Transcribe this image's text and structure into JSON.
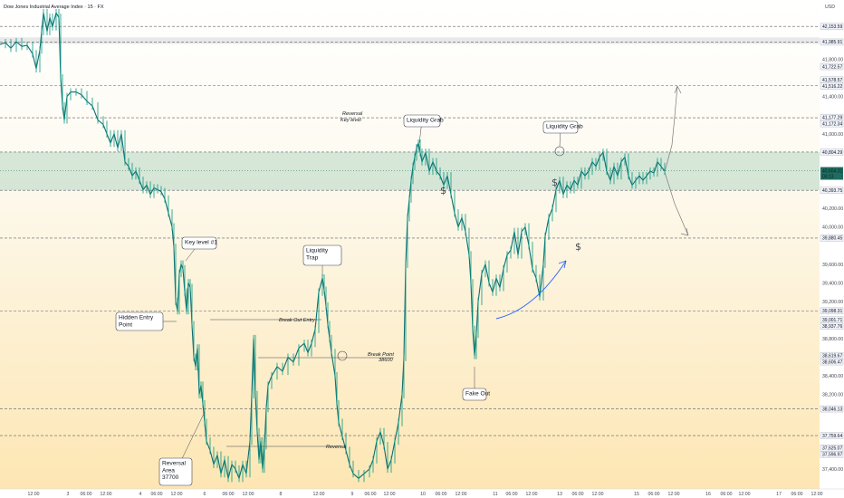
{
  "chart_data": {
    "type": "line",
    "title": "Dow Jones Industrial Average Index · 15 · FX",
    "currency": "USD",
    "ylim": [
      37000,
      42300
    ],
    "y_ticks": [
      "42,000.00",
      "41,800.00",
      "41,400.00",
      "41,000.00",
      "40,200.00",
      "40,000.00",
      "39,600.00",
      "39,400.00",
      "39,200.00",
      "38,800.00",
      "38,400.00",
      "38,200.00",
      "37,400.00"
    ],
    "level_labels": [
      "42,153.59",
      "41,985.91",
      "41,722.57",
      "41,578.57",
      "41,516.22",
      "41,177.29",
      "41,172.34",
      "40,804.29",
      "40,393.75",
      "39,880.45",
      "39,098.31",
      "39,001.71",
      "38,937.76",
      "38,619.67",
      "38,606.47",
      "38,046.13",
      "37,759.64",
      "37,625.07",
      "37,596.97"
    ],
    "current_price": "40,604.31",
    "current_countdown": "03:13",
    "x_tick_labels": [
      "12:00",
      "3",
      "06:00",
      "12:00",
      "4",
      "06:00",
      "12:00",
      "6",
      "06:00",
      "12:00",
      "8",
      "12:00",
      "9",
      "06:00",
      "12:00",
      "10",
      "06:00",
      "12:00",
      "11",
      "06:00",
      "12:00",
      "13",
      "06:00",
      "12:00",
      "15",
      "06:00",
      "12:00",
      "16",
      "06:00",
      "12:00",
      "17",
      "06:00",
      "12:00"
    ],
    "series": [
      {
        "values": [
          [
            0,
            41960
          ],
          [
            6,
            41980
          ],
          [
            12,
            41920
          ],
          [
            18,
            41990
          ],
          [
            24,
            41940
          ],
          [
            30,
            41950
          ],
          [
            36,
            41860
          ],
          [
            40,
            41700
          ],
          [
            44,
            41900
          ],
          [
            46,
            42100
          ],
          [
            48,
            42300
          ],
          [
            52,
            42100
          ],
          [
            55,
            42250
          ],
          [
            58,
            42150
          ],
          [
            62,
            42300
          ],
          [
            65,
            42250
          ],
          [
            67,
            41600
          ],
          [
            69,
            41300
          ],
          [
            71,
            41150
          ],
          [
            74,
            41400
          ],
          [
            78,
            41450
          ],
          [
            84,
            41450
          ],
          [
            90,
            41420
          ],
          [
            96,
            41350
          ],
          [
            102,
            41300
          ],
          [
            108,
            41150
          ],
          [
            114,
            41100
          ],
          [
            118,
            41000
          ],
          [
            122,
            40900
          ],
          [
            126,
            41000
          ],
          [
            130,
            40850
          ],
          [
            134,
            41000
          ],
          [
            138,
            40700
          ],
          [
            142,
            40650
          ],
          [
            146,
            40550
          ],
          [
            150,
            40600
          ],
          [
            154,
            40500
          ],
          [
            158,
            40400
          ],
          [
            162,
            40450
          ],
          [
            166,
            40350
          ],
          [
            170,
            40420
          ],
          [
            174,
            40400
          ],
          [
            178,
            40380
          ],
          [
            182,
            40300
          ],
          [
            186,
            40150
          ],
          [
            190,
            40000
          ],
          [
            192,
            39780
          ],
          [
            194,
            39200
          ],
          [
            196,
            39100
          ],
          [
            198,
            39500
          ],
          [
            200,
            39600
          ],
          [
            202,
            39550
          ],
          [
            204,
            39300
          ],
          [
            206,
            39100
          ],
          [
            208,
            39400
          ],
          [
            210,
            39350
          ],
          [
            212,
            38950
          ],
          [
            214,
            38600
          ],
          [
            216,
            38500
          ],
          [
            218,
            38700
          ],
          [
            220,
            38200
          ],
          [
            222,
            38300
          ],
          [
            224,
            38100
          ],
          [
            226,
            37900
          ],
          [
            228,
            37700
          ],
          [
            232,
            37600
          ],
          [
            236,
            37450
          ],
          [
            240,
            37550
          ],
          [
            244,
            37350
          ],
          [
            248,
            37500
          ],
          [
            252,
            37300
          ],
          [
            256,
            37450
          ],
          [
            260,
            37400
          ],
          [
            264,
            37300
          ],
          [
            268,
            37450
          ],
          [
            272,
            37350
          ],
          [
            276,
            37700
          ],
          [
            278,
            38200
          ],
          [
            280,
            38800
          ],
          [
            282,
            38200
          ],
          [
            284,
            37800
          ],
          [
            286,
            37500
          ],
          [
            288,
            37700
          ],
          [
            290,
            37400
          ],
          [
            292,
            37650
          ],
          [
            294,
            38050
          ],
          [
            296,
            38300
          ],
          [
            300,
            38400
          ],
          [
            306,
            38500
          ],
          [
            312,
            38450
          ],
          [
            318,
            38600
          ],
          [
            324,
            38550
          ],
          [
            330,
            38700
          ],
          [
            336,
            38750
          ],
          [
            340,
            38650
          ],
          [
            344,
            38750
          ],
          [
            348,
            38900
          ],
          [
            352,
            39300
          ],
          [
            356,
            39450
          ],
          [
            358,
            39320
          ],
          [
            360,
            39150
          ],
          [
            362,
            38950
          ],
          [
            364,
            38800
          ],
          [
            366,
            38650
          ],
          [
            370,
            38400
          ],
          [
            372,
            38100
          ],
          [
            374,
            37900
          ],
          [
            378,
            37750
          ],
          [
            382,
            37600
          ],
          [
            386,
            37450
          ],
          [
            390,
            37350
          ],
          [
            396,
            37300
          ],
          [
            402,
            37350
          ],
          [
            408,
            37400
          ],
          [
            412,
            37500
          ],
          [
            416,
            37700
          ],
          [
            420,
            37800
          ],
          [
            424,
            37650
          ],
          [
            428,
            37400
          ],
          [
            432,
            37500
          ],
          [
            436,
            37700
          ],
          [
            440,
            37900
          ],
          [
            444,
            38200
          ],
          [
            446,
            38600
          ],
          [
            448,
            39600
          ],
          [
            450,
            40100
          ],
          [
            452,
            40300
          ],
          [
            454,
            40500
          ],
          [
            456,
            40650
          ],
          [
            458,
            40750
          ],
          [
            460,
            40850
          ],
          [
            462,
            40900
          ],
          [
            464,
            40800
          ],
          [
            466,
            40700
          ],
          [
            470,
            40800
          ],
          [
            474,
            40600
          ],
          [
            478,
            40700
          ],
          [
            482,
            40600
          ],
          [
            486,
            40550
          ],
          [
            490,
            40450
          ],
          [
            494,
            40550
          ],
          [
            498,
            40350
          ],
          [
            502,
            40150
          ],
          [
            506,
            40000
          ],
          [
            510,
            40100
          ],
          [
            514,
            39950
          ],
          [
            518,
            39700
          ],
          [
            520,
            39400
          ],
          [
            522,
            38900
          ],
          [
            524,
            38620
          ],
          [
            526,
            38850
          ],
          [
            528,
            39200
          ],
          [
            532,
            39500
          ],
          [
            536,
            39600
          ],
          [
            540,
            39400
          ],
          [
            544,
            39300
          ],
          [
            548,
            39450
          ],
          [
            552,
            39350
          ],
          [
            556,
            39550
          ],
          [
            560,
            39700
          ],
          [
            564,
            39750
          ],
          [
            568,
            39950
          ],
          [
            572,
            39700
          ],
          [
            576,
            39950
          ],
          [
            580,
            40000
          ],
          [
            584,
            39800
          ],
          [
            588,
            39550
          ],
          [
            592,
            39450
          ],
          [
            596,
            39250
          ],
          [
            600,
            39600
          ],
          [
            602,
            39900
          ],
          [
            606,
            40100
          ],
          [
            610,
            40200
          ],
          [
            614,
            40400
          ],
          [
            618,
            40500
          ],
          [
            622,
            40350
          ],
          [
            626,
            40450
          ],
          [
            630,
            40400
          ],
          [
            634,
            40500
          ],
          [
            638,
            40450
          ],
          [
            642,
            40600
          ],
          [
            646,
            40550
          ],
          [
            650,
            40600
          ],
          [
            654,
            40700
          ],
          [
            658,
            40650
          ],
          [
            662,
            40750
          ],
          [
            666,
            40800
          ],
          [
            670,
            40600
          ],
          [
            674,
            40500
          ],
          [
            678,
            40650
          ],
          [
            682,
            40550
          ],
          [
            686,
            40700
          ],
          [
            690,
            40750
          ],
          [
            694,
            40550
          ],
          [
            698,
            40450
          ],
          [
            702,
            40500
          ],
          [
            706,
            40550
          ],
          [
            710,
            40500
          ],
          [
            714,
            40550
          ],
          [
            718,
            40600
          ],
          [
            722,
            40580
          ],
          [
            726,
            40700
          ],
          [
            730,
            40650
          ],
          [
            734,
            40600
          ]
        ]
      }
    ],
    "annotations": {
      "callouts": [
        {
          "id": "key-level-1",
          "lines": [
            "Key level #1"
          ]
        },
        {
          "id": "hidden-entry",
          "lines": [
            "Hidden Entry",
            "Point"
          ]
        },
        {
          "id": "liquidity-trap",
          "lines": [
            "Liquidity",
            "Trap"
          ]
        },
        {
          "id": "liquidity-grab-1",
          "lines": [
            "Liquidity Grab"
          ]
        },
        {
          "id": "liquidity-grab-2",
          "lines": [
            "Liquidity Grab"
          ]
        },
        {
          "id": "fake-out",
          "lines": [
            "Fake Out"
          ]
        },
        {
          "id": "reversal-area",
          "lines": [
            "Reversal",
            "Area",
            "37700"
          ]
        }
      ],
      "notes": {
        "reversal_key_level": [
          "Reversal",
          "Key level"
        ],
        "break_out_entry": "Break Out Entry",
        "break_point": [
          "Break Point",
          "38600"
        ],
        "reversal_small": "Reversal"
      },
      "dollar_sign": "$"
    },
    "colors": {
      "bull": "#089981",
      "bear": "#089981",
      "line": "#0b6e74",
      "level_line": "#5d606b",
      "zone": "#b7d7c2",
      "bg_top": "#ffffff",
      "bg_bottom": "#fde7b8",
      "price_label_bg": "#1e6e60"
    },
    "grid": false
  }
}
